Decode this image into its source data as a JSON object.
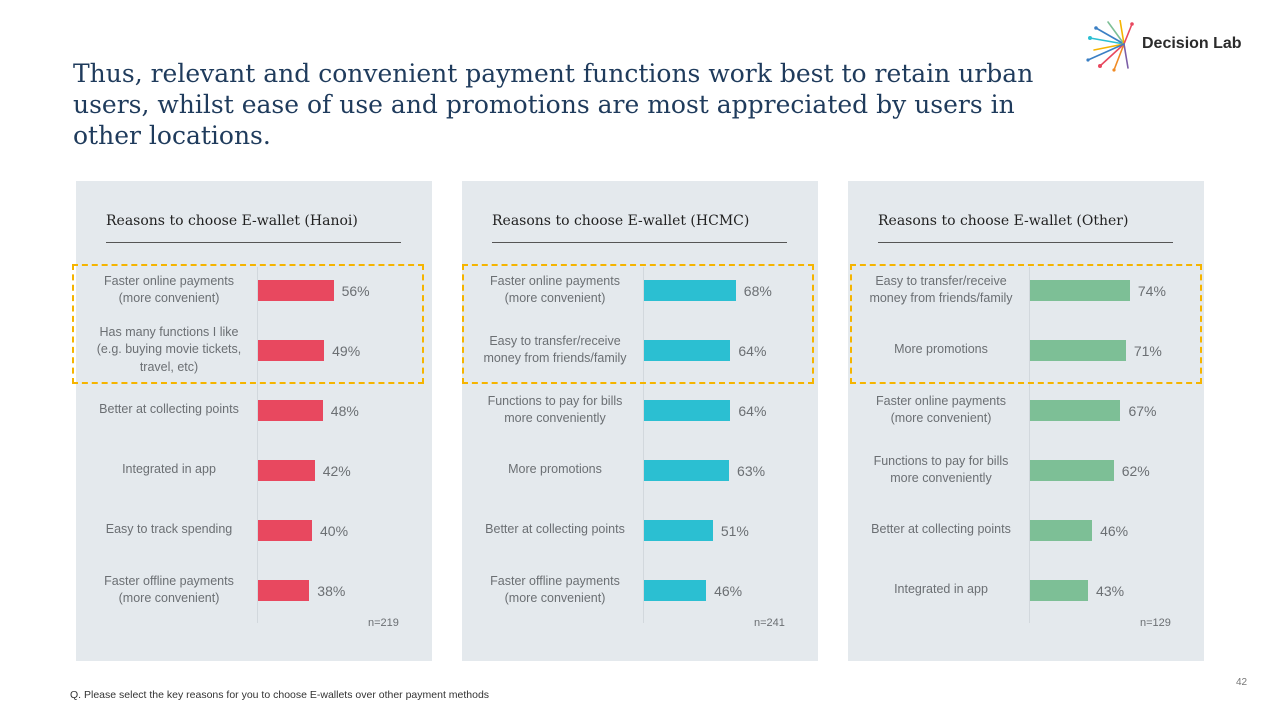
{
  "headline": "Thus, relevant and convenient payment functions work best to retain urban users, whilst ease of use and promotions are most appreciated by users in other locations.",
  "logo_text": "Decision Lab",
  "footnote": "Q. Please select the key reasons for you to choose E-wallets over other payment methods",
  "page_number": "42",
  "chart_data": [
    {
      "type": "bar",
      "orientation": "horizontal",
      "title": "Reasons to choose  E-wallet (Hanoi)",
      "color": "#e8485f",
      "sample": "n=219",
      "highlighted_rows": 2,
      "categories": [
        "Faster online payments (more convenient)",
        "Has many functions I like (e.g. buying movie tickets, travel, etc)",
        "Better at collecting points",
        "Integrated in app",
        "Easy to track spending",
        "Faster offline payments (more convenient)"
      ],
      "values": [
        56,
        49,
        48,
        42,
        40,
        38
      ],
      "value_labels": [
        "56%",
        "49%",
        "48%",
        "42%",
        "40%",
        "38%"
      ]
    },
    {
      "type": "bar",
      "orientation": "horizontal",
      "title": "Reasons to choose  E-wallet (HCMC)",
      "color": "#2bbfd2",
      "sample": "n=241",
      "highlighted_rows": 2,
      "categories": [
        "Faster online payments (more convenient)",
        "Easy to transfer/receive money from friends/family",
        "Functions to pay for bills more conveniently",
        "More promotions",
        "Better at collecting points",
        "Faster offline payments (more convenient)"
      ],
      "values": [
        68,
        64,
        64,
        63,
        51,
        46
      ],
      "value_labels": [
        "68%",
        "64%",
        "64%",
        "63%",
        "51%",
        "46%"
      ]
    },
    {
      "type": "bar",
      "orientation": "horizontal",
      "title": "Reasons to choose  E-wallet (Other)",
      "color": "#7dbf96",
      "sample": "n=129",
      "highlighted_rows": 2,
      "categories": [
        "Easy to transfer/receive money from friends/family",
        "More promotions",
        "Faster online payments (more convenient)",
        "Functions to pay for bills more conveniently",
        "Better at collecting points",
        "Integrated in app"
      ],
      "values": [
        74,
        71,
        67,
        62,
        46,
        43
      ],
      "value_labels": [
        "74%",
        "71%",
        "67%",
        "62%",
        "46%",
        "43%"
      ]
    }
  ]
}
